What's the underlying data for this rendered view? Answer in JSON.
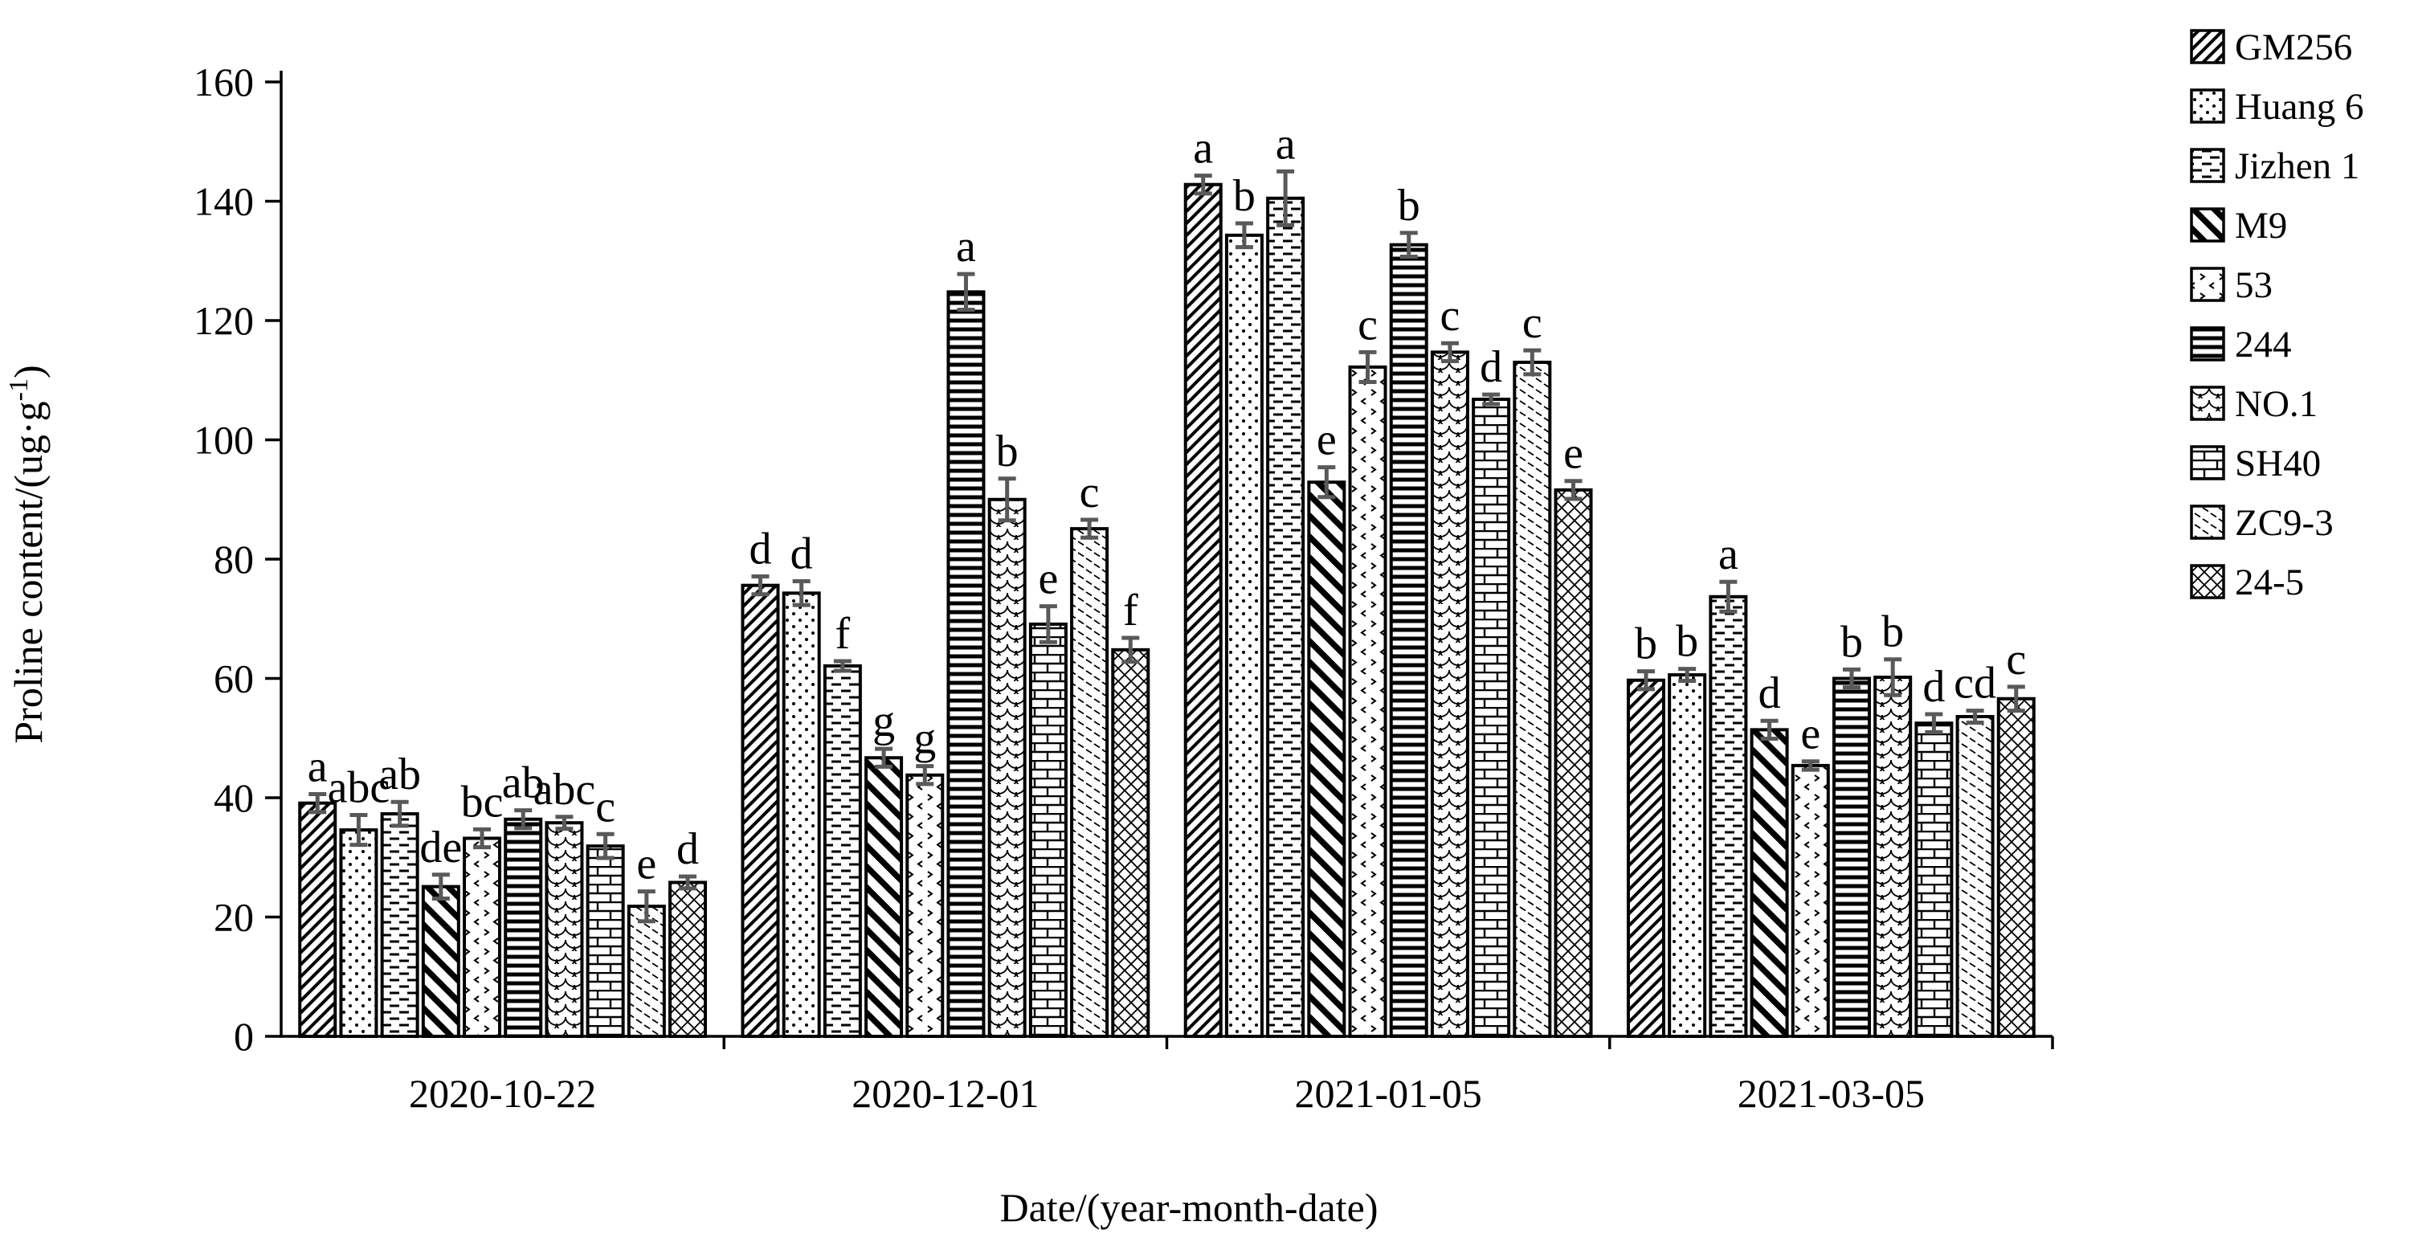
{
  "figure": {
    "background": "#ffffff",
    "ink_color": "#000000",
    "error_bar_color": "#595959"
  },
  "axis": {
    "y_title_main": "Proline content/(ug·g",
    "y_title_sup": "-1",
    "y_title_close": ")",
    "x_title": "Date/(year-month-date)"
  },
  "chart_data": {
    "type": "bar",
    "title": "",
    "xlabel": "Date/(year-month-date)",
    "ylabel": "Proline content/(ug·g-1)",
    "ylim": [
      0,
      160
    ],
    "yticks": [
      0,
      20,
      40,
      60,
      80,
      100,
      120,
      140,
      160
    ],
    "grid": false,
    "legend_position": "right",
    "categories": [
      "2020-10-22",
      "2020-12-01",
      "2021-01-05",
      "2021-03-05"
    ],
    "series": [
      {
        "name": "GM256",
        "pattern": "diagonal-forward-bold",
        "values": [
          39.1,
          75.6,
          142.8,
          59.7
        ],
        "errors": [
          1.5,
          1.5,
          1.5,
          1.5
        ],
        "letters": [
          "a",
          "d",
          "a",
          "b"
        ]
      },
      {
        "name": "Huang 6",
        "pattern": "dots",
        "values": [
          34.6,
          74.3,
          134.3,
          60.6
        ],
        "errors": [
          2.5,
          2.0,
          2.0,
          1.0
        ],
        "letters": [
          "abc",
          "d",
          "b",
          "b"
        ]
      },
      {
        "name": "Jizhen 1",
        "pattern": "horizontal-dashes",
        "values": [
          37.3,
          62.1,
          140.5,
          73.7
        ],
        "errors": [
          2.0,
          0.8,
          4.5,
          2.5
        ],
        "letters": [
          "ab",
          "f",
          "a",
          "a"
        ]
      },
      {
        "name": "M9",
        "pattern": "diagonal-back-bold",
        "values": [
          25.1,
          46.7,
          92.9,
          51.4
        ],
        "errors": [
          2.0,
          1.5,
          2.5,
          1.5
        ],
        "letters": [
          "de",
          "g",
          "e",
          "d"
        ]
      },
      {
        "name": "53",
        "pattern": "chevron-dots",
        "values": [
          33.2,
          43.8,
          112.2,
          45.4
        ],
        "errors": [
          1.5,
          1.5,
          2.5,
          0.7
        ],
        "letters": [
          "bc",
          "g",
          "c",
          "e"
        ]
      },
      {
        "name": "244",
        "pattern": "horizontal-lines-bold",
        "values": [
          36.4,
          124.8,
          132.7,
          60.0
        ],
        "errors": [
          1.5,
          3.0,
          2.0,
          1.5
        ],
        "letters": [
          "ab",
          "a",
          "b",
          "b"
        ]
      },
      {
        "name": "NO.1",
        "pattern": "fish-scale",
        "values": [
          35.8,
          90.0,
          114.7,
          60.2
        ],
        "errors": [
          1.0,
          3.5,
          1.5,
          3.0
        ],
        "letters": [
          "abc",
          "b",
          "c",
          "b"
        ]
      },
      {
        "name": "SH40",
        "pattern": "brick",
        "values": [
          31.9,
          69.1,
          106.8,
          52.5
        ],
        "errors": [
          2.0,
          3.0,
          0.8,
          1.5
        ],
        "letters": [
          "c",
          "e",
          "d",
          "d"
        ]
      },
      {
        "name": "ZC9-3",
        "pattern": "diagonal-back-light",
        "values": [
          21.8,
          85.1,
          113.0,
          53.6
        ],
        "errors": [
          2.5,
          1.5,
          2.0,
          1.0
        ],
        "letters": [
          "e",
          "c",
          "c",
          "cd"
        ]
      },
      {
        "name": "24-5",
        "pattern": "crosshatch",
        "values": [
          25.8,
          64.8,
          91.6,
          56.6
        ],
        "errors": [
          1.0,
          2.0,
          1.5,
          2.0
        ],
        "letters": [
          "d",
          "f",
          "e",
          "c"
        ]
      }
    ]
  }
}
